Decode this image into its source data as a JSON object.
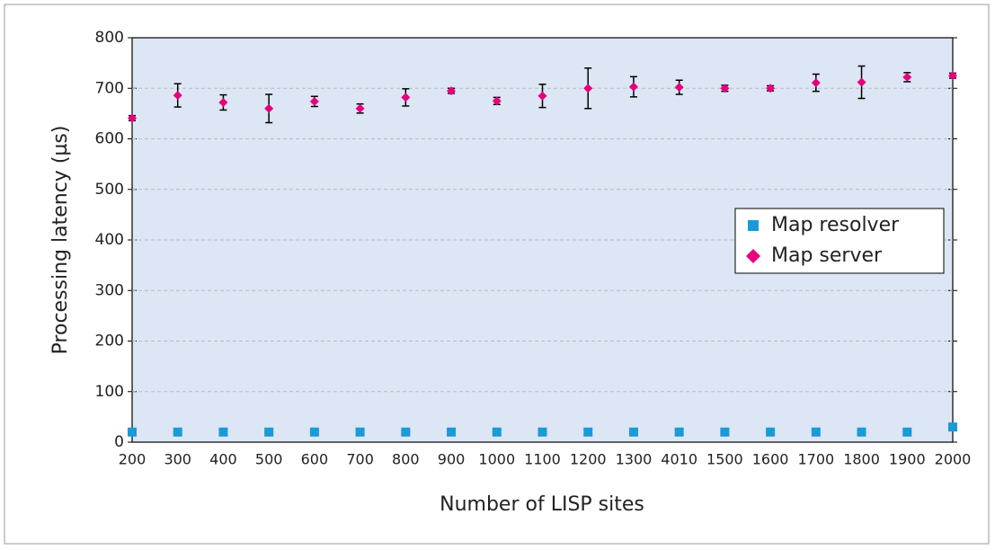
{
  "chart_data": {
    "type": "scatter",
    "xlabel": "Number of LISP sites",
    "ylabel": "Processing latency (µs)",
    "categories": [
      "200",
      "300",
      "400",
      "500",
      "600",
      "700",
      "800",
      "900",
      "1000",
      "1100",
      "1200",
      "1300",
      "4010",
      "1500",
      "1600",
      "1700",
      "1800",
      "1900",
      "2000"
    ],
    "ylim": [
      0,
      800
    ],
    "yticks": [
      0,
      100,
      200,
      300,
      400,
      500,
      600,
      700,
      800
    ],
    "grid": true,
    "legend": "right",
    "series": [
      {
        "name": "Map resolver",
        "color": "#1a9ad6",
        "marker": "square",
        "values": [
          20,
          20,
          20,
          20,
          20,
          20,
          20,
          20,
          20,
          20,
          20,
          20,
          20,
          20,
          20,
          20,
          20,
          20,
          30
        ]
      },
      {
        "name": "Map server",
        "color": "#e6007e",
        "marker": "diamond",
        "values": [
          641,
          686,
          672,
          660,
          674,
          660,
          682,
          695,
          675,
          685,
          700,
          703,
          702,
          700,
          700,
          711,
          712,
          722,
          725
        ],
        "errors": [
          5,
          23,
          15,
          28,
          10,
          9,
          17,
          5,
          7,
          23,
          40,
          20,
          14,
          6,
          5,
          17,
          32,
          9,
          5
        ]
      }
    ]
  }
}
